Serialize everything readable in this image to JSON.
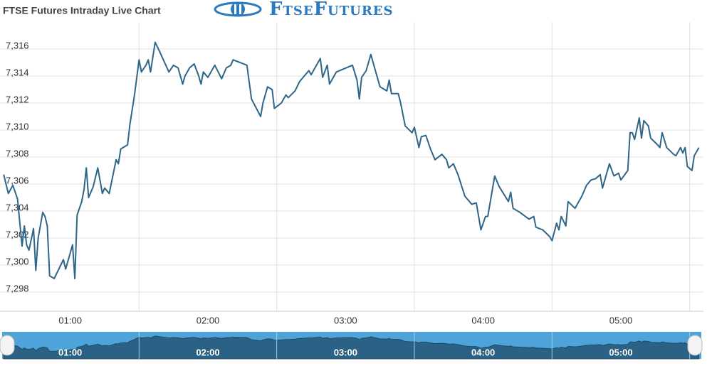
{
  "header": {
    "title": "FTSE Futures Intraday Live Chart",
    "logo": "FtseFutures"
  },
  "chart_data": {
    "type": "line",
    "x": [
      "00:31",
      "00:33",
      "00:35",
      "00:37",
      "00:39",
      "00:40",
      "00:41",
      "00:42",
      "00:44",
      "00:45",
      "00:46",
      "00:48",
      "00:49",
      "00:50",
      "00:51",
      "00:53",
      "00:55",
      "00:57",
      "00:58",
      "01:01",
      "01:02",
      "01:03",
      "01:05",
      "01:06",
      "01:07",
      "01:08",
      "01:10",
      "01:12",
      "01:14",
      "01:15",
      "01:17",
      "01:20",
      "01:21",
      "01:22",
      "01:25",
      "01:26",
      "01:28",
      "01:30",
      "01:31",
      "01:33",
      "01:34",
      "01:35",
      "01:37",
      "01:39",
      "01:43",
      "01:45",
      "01:47",
      "01:49",
      "01:50",
      "01:52",
      "01:54",
      "01:56",
      "01:57",
      "01:58",
      "02:00",
      "02:03",
      "02:06",
      "02:08",
      "02:10",
      "02:11",
      "02:17",
      "02:19",
      "02:23",
      "02:24",
      "02:26",
      "02:28",
      "02:29",
      "02:32",
      "02:34",
      "02:35",
      "02:38",
      "02:40",
      "02:44",
      "02:45",
      "02:49",
      "02:50",
      "02:52",
      "02:53",
      "02:56",
      "03:03",
      "03:05",
      "03:06",
      "03:07",
      "03:09",
      "03:11",
      "03:15",
      "03:18",
      "03:19",
      "03:20",
      "03:23",
      "03:24",
      "03:26",
      "03:29",
      "03:30",
      "03:32",
      "03:33",
      "03:35",
      "03:37",
      "03:39",
      "03:42",
      "03:44",
      "03:45",
      "03:47",
      "03:49",
      "03:52",
      "03:55",
      "03:57",
      "03:59",
      "04:01",
      "04:02",
      "04:05",
      "04:07",
      "04:11",
      "04:12",
      "04:13",
      "04:16",
      "04:20",
      "04:22",
      "04:23",
      "04:26",
      "04:29",
      "04:30",
      "04:32",
      "04:33",
      "04:34",
      "04:36",
      "04:37",
      "04:40",
      "04:43",
      "04:45",
      "04:47",
      "04:49",
      "04:51",
      "04:52",
      "04:55",
      "04:57",
      "04:59",
      "05:00",
      "05:03",
      "05:04",
      "05:05",
      "05:06",
      "05:08",
      "05:09",
      "05:10",
      "05:12",
      "05:13",
      "05:16",
      "05:17",
      "05:18",
      "05:20",
      "05:23",
      "05:24",
      "05:26",
      "05:27",
      "05:28",
      "05:29",
      "05:31",
      "05:32",
      "05:34"
    ],
    "series": [
      {
        "name": "FTSE Futures",
        "color": "#2e6689",
        "values": [
          7306.7,
          7305.3,
          7305.9,
          7304.9,
          7301.4,
          7302.9,
          7301.5,
          7301.1,
          7302.7,
          7299.6,
          7302.0,
          7303.9,
          7303.6,
          7302.9,
          7299.2,
          7299.0,
          7299.7,
          7300.4,
          7299.7,
          7301.5,
          7299.0,
          7303.7,
          7304.7,
          7305.6,
          7307.2,
          7305.0,
          7305.8,
          7307.2,
          7305.3,
          7305.7,
          7305.3,
          7307.8,
          7307.5,
          7308.6,
          7308.9,
          7310.4,
          7312.6,
          7315.2,
          7314.3,
          7314.8,
          7315.2,
          7314.3,
          7316.5,
          7315.8,
          7314.3,
          7314.8,
          7314.6,
          7313.4,
          7314.0,
          7314.6,
          7314.9,
          7314.0,
          7313.4,
          7314.3,
          7313.9,
          7314.8,
          7313.8,
          7314.6,
          7314.8,
          7315.2,
          7314.8,
          7312.3,
          7311.0,
          7312.0,
          7313.2,
          7313.0,
          7311.6,
          7312.0,
          7312.6,
          7312.4,
          7312.9,
          7313.6,
          7314.4,
          7314.1,
          7315.3,
          7313.9,
          7314.8,
          7313.4,
          7314.3,
          7314.8,
          7313.7,
          7312.3,
          7313.9,
          7314.4,
          7315.6,
          7313.2,
          7312.9,
          7313.7,
          7312.7,
          7312.7,
          7312.0,
          7310.3,
          7309.8,
          7310.2,
          7308.7,
          7309.5,
          7309.6,
          7308.6,
          7307.8,
          7308.2,
          7307.8,
          7307.2,
          7307.5,
          7306.7,
          7305.1,
          7304.5,
          7304.6,
          7302.6,
          7303.6,
          7303.6,
          7306.6,
          7305.8,
          7304.7,
          7305.4,
          7304.2,
          7303.9,
          7303.4,
          7303.6,
          7302.8,
          7302.6,
          7302.1,
          7301.8,
          7303.1,
          7302.6,
          7303.6,
          7302.9,
          7304.7,
          7304.2,
          7305.1,
          7305.9,
          7306.3,
          7306.4,
          7306.7,
          7305.7,
          7307.5,
          7306.6,
          7306.8,
          7306.3,
          7307.0,
          7309.8,
          7309.8,
          7309.3,
          7310.9,
          7309.4,
          7310.7,
          7310.3,
          7309.4,
          7308.9,
          7308.7,
          7309.8,
          7308.7,
          7308.2,
          7308.1,
          7308.7,
          7308.3,
          7308.7,
          7307.3,
          7307.0,
          7308.1,
          7308.7
        ]
      }
    ],
    "xlim": [
      "00:30",
      "05:36"
    ],
    "xticks": [
      "01:00",
      "02:00",
      "03:00",
      "04:00",
      "05:00"
    ],
    "ylim": [
      7297,
      7318
    ],
    "yticks": [
      {
        "value": 7298,
        "label": "7,298"
      },
      {
        "value": 7300,
        "label": "7,300"
      },
      {
        "value": 7302,
        "label": "7,302"
      },
      {
        "value": 7304,
        "label": "7,304"
      },
      {
        "value": 7306,
        "label": "7,306"
      },
      {
        "value": 7308,
        "label": "7,308"
      },
      {
        "value": 7310,
        "label": "7,310"
      },
      {
        "value": 7312,
        "label": "7,312"
      },
      {
        "value": 7314,
        "label": "7,314"
      },
      {
        "value": 7316,
        "label": "7,316"
      }
    ],
    "grid": true
  }
}
